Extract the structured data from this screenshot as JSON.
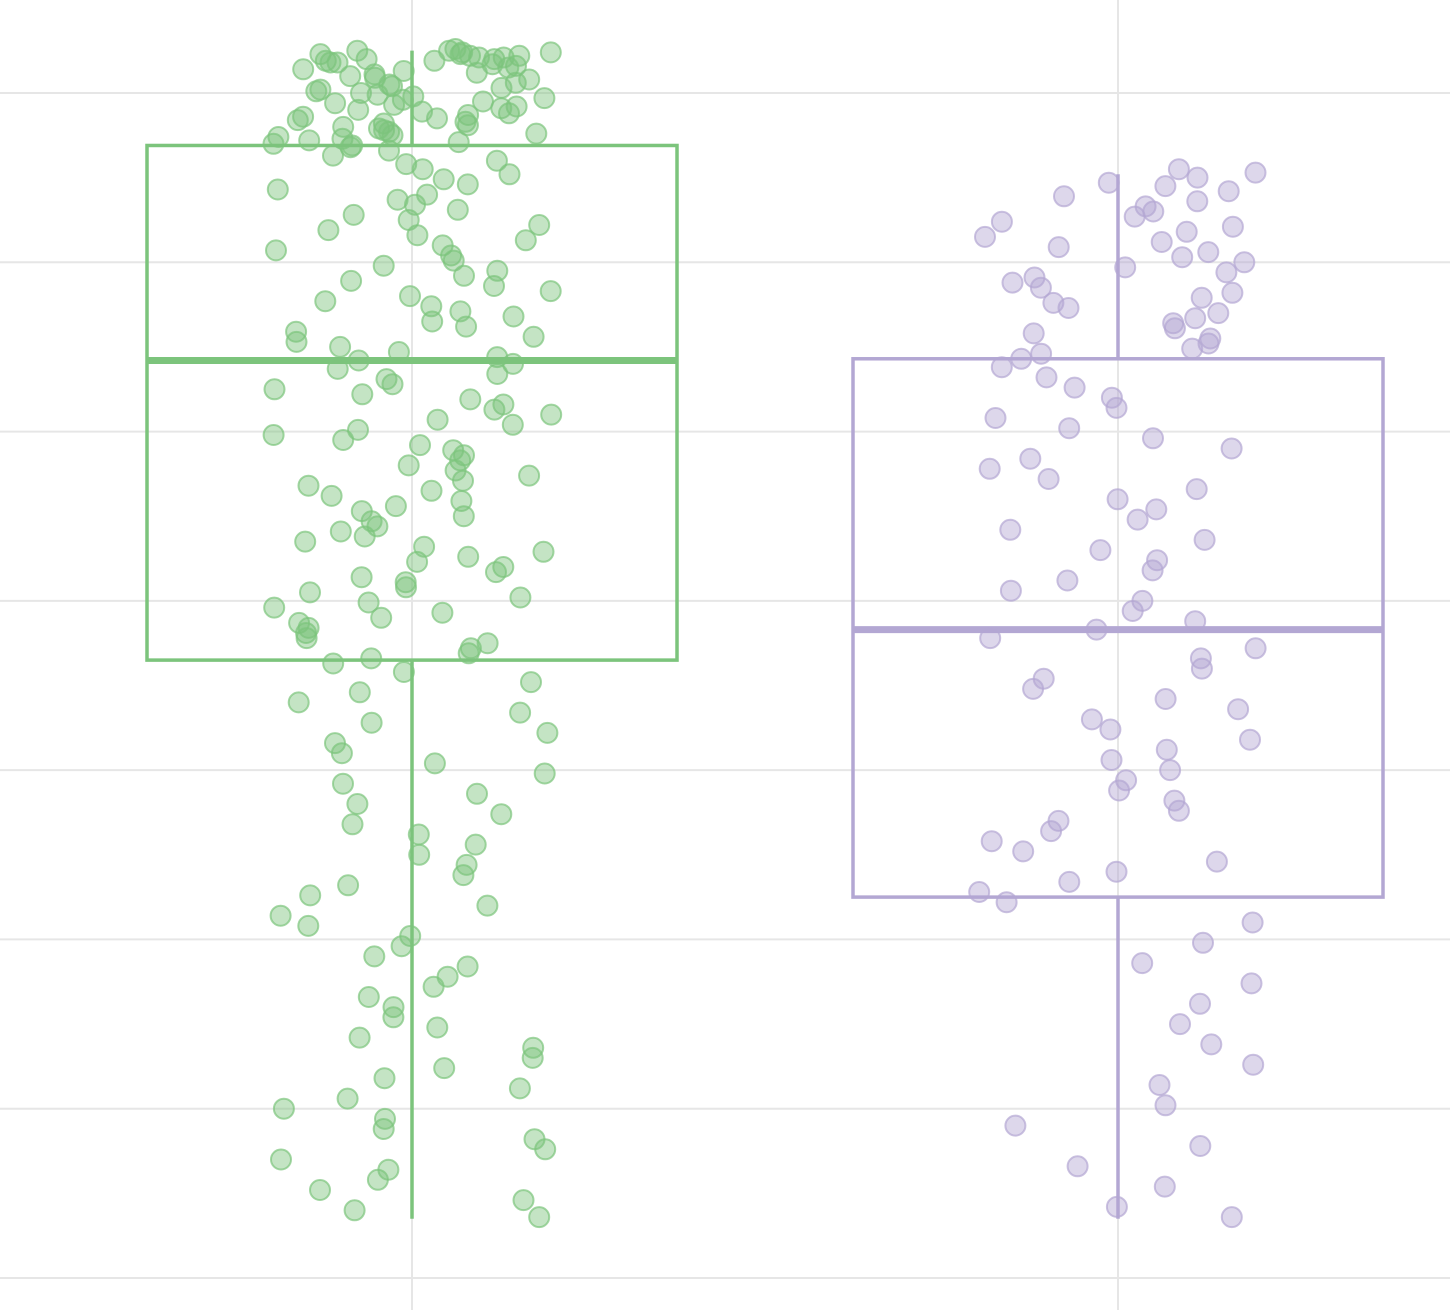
{
  "chart_data": {
    "type": "box",
    "title": "",
    "xlabel": "",
    "ylabel": "",
    "ylim": [
      0,
      7.7
    ],
    "grid": true,
    "y_gridlines": [
      1,
      2,
      3,
      4,
      5,
      6,
      7
    ],
    "series": [
      {
        "color": "#7cc47c",
        "stats": {
          "min": 0.35,
          "q1": 3.65,
          "median": 5.42,
          "q3": 6.69,
          "max": 7.25
        },
        "points": [
          7.26,
          7.25,
          7.25,
          7.24,
          7.24,
          7.23,
          7.23,
          7.22,
          7.22,
          7.21,
          7.21,
          7.2,
          7.2,
          7.19,
          7.19,
          7.18,
          7.18,
          7.17,
          7.16,
          7.15,
          7.14,
          7.13,
          7.12,
          7.11,
          7.1,
          7.09,
          7.08,
          7.06,
          7.05,
          7.04,
          7.03,
          7.02,
          7.01,
          7.0,
          6.99,
          6.98,
          6.97,
          6.96,
          6.95,
          6.94,
          6.93,
          6.92,
          6.91,
          6.9,
          6.89,
          6.88,
          6.87,
          6.86,
          6.85,
          6.84,
          6.83,
          6.82,
          6.81,
          6.8,
          6.79,
          6.78,
          6.77,
          6.76,
          6.75,
          6.74,
          6.73,
          6.72,
          6.71,
          6.7,
          6.69,
          6.68,
          6.66,
          6.63,
          6.6,
          6.58,
          6.55,
          6.52,
          6.49,
          6.46,
          6.43,
          6.4,
          6.37,
          6.34,
          6.31,
          6.28,
          6.25,
          6.22,
          6.19,
          6.16,
          6.13,
          6.1,
          6.07,
          6.04,
          6.01,
          5.98,
          5.95,
          5.92,
          5.89,
          5.86,
          5.83,
          5.8,
          5.77,
          5.74,
          5.71,
          5.68,
          5.65,
          5.62,
          5.59,
          5.56,
          5.53,
          5.5,
          5.47,
          5.44,
          5.42,
          5.4,
          5.37,
          5.34,
          5.31,
          5.28,
          5.25,
          5.22,
          5.19,
          5.16,
          5.13,
          5.1,
          5.07,
          5.04,
          5.01,
          4.98,
          4.95,
          4.92,
          4.89,
          4.86,
          4.83,
          4.8,
          4.77,
          4.74,
          4.71,
          4.68,
          4.65,
          4.62,
          4.59,
          4.56,
          4.53,
          4.5,
          4.47,
          4.44,
          4.41,
          4.38,
          4.35,
          4.32,
          4.29,
          4.26,
          4.23,
          4.2,
          4.17,
          4.14,
          4.11,
          4.08,
          4.05,
          4.02,
          3.99,
          3.96,
          3.93,
          3.9,
          3.87,
          3.84,
          3.81,
          3.78,
          3.75,
          3.72,
          3.69,
          3.66,
          3.63,
          3.58,
          3.52,
          3.46,
          3.4,
          3.34,
          3.28,
          3.22,
          3.16,
          3.1,
          3.04,
          2.98,
          2.92,
          2.86,
          2.8,
          2.74,
          2.68,
          2.62,
          2.56,
          2.5,
          2.44,
          2.38,
          2.32,
          2.26,
          2.2,
          2.14,
          2.08,
          2.02,
          1.96,
          1.9,
          1.84,
          1.78,
          1.72,
          1.66,
          1.6,
          1.54,
          1.48,
          1.42,
          1.36,
          1.3,
          1.24,
          1.18,
          1.12,
          1.06,
          1.0,
          0.94,
          0.88,
          0.82,
          0.76,
          0.7,
          0.64,
          0.58,
          0.52,
          0.46,
          0.4,
          0.36
        ]
      },
      {
        "color": "#b3a7d3",
        "stats": {
          "min": 0.35,
          "q1": 2.25,
          "median": 3.83,
          "q3": 5.43,
          "max": 6.52
        },
        "points": [
          6.55,
          6.53,
          6.5,
          6.47,
          6.45,
          6.42,
          6.39,
          6.36,
          6.33,
          6.3,
          6.27,
          6.24,
          6.21,
          6.18,
          6.15,
          6.12,
          6.09,
          6.06,
          6.03,
          6.0,
          5.97,
          5.94,
          5.91,
          5.88,
          5.85,
          5.82,
          5.79,
          5.76,
          5.73,
          5.7,
          5.67,
          5.64,
          5.61,
          5.58,
          5.55,
          5.52,
          5.49,
          5.46,
          5.43,
          5.38,
          5.32,
          5.26,
          5.2,
          5.14,
          5.08,
          5.02,
          4.96,
          4.9,
          4.84,
          4.78,
          4.72,
          4.66,
          4.6,
          4.54,
          4.48,
          4.42,
          4.36,
          4.3,
          4.24,
          4.18,
          4.12,
          4.06,
          4.0,
          3.94,
          3.88,
          3.83,
          3.78,
          3.72,
          3.66,
          3.6,
          3.54,
          3.48,
          3.42,
          3.36,
          3.3,
          3.24,
          3.18,
          3.12,
          3.06,
          3.0,
          2.94,
          2.88,
          2.82,
          2.76,
          2.7,
          2.64,
          2.58,
          2.52,
          2.46,
          2.4,
          2.34,
          2.28,
          2.22,
          2.1,
          1.98,
          1.86,
          1.74,
          1.62,
          1.5,
          1.38,
          1.26,
          1.14,
          1.02,
          0.9,
          0.78,
          0.66,
          0.54,
          0.42,
          0.36
        ]
      }
    ]
  }
}
